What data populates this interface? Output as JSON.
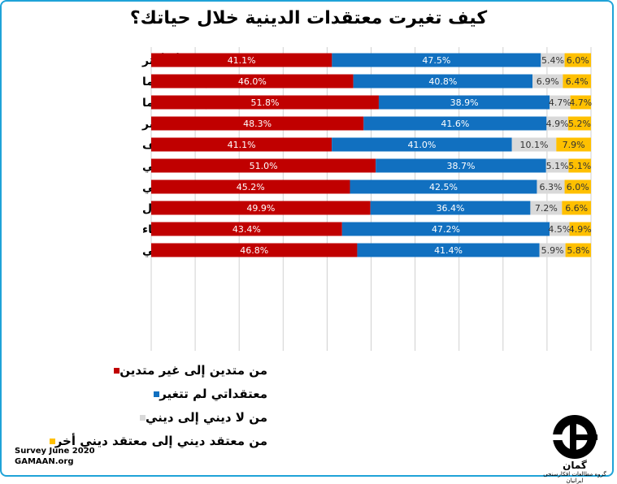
{
  "chart_data": {
    "type": "bar",
    "stacked": true,
    "orientation": "horizontal",
    "title": "كيف تغيرت معتقدات الدينية خلال حياتك؟",
    "categories": [
      "50 عاما أو أكثر",
      "من 30 إلى 49 عاما",
      "من 20 إلى 29 عاما",
      "الحضر",
      "الريف",
      "تعليم جامعي",
      "تعليم غير جامعي",
      "رجال",
      "نساء",
      "المجموع الكلي"
    ],
    "groups": [
      [
        0,
        1,
        2
      ],
      [
        3,
        4
      ],
      [
        5,
        6
      ],
      [
        7,
        8
      ],
      [
        9
      ]
    ],
    "series": [
      {
        "name": "من متدين إلى غير متدين",
        "color": "#c00000",
        "values": [
          41.1,
          46.0,
          51.8,
          48.3,
          41.1,
          51.0,
          45.2,
          49.9,
          43.4,
          46.8
        ]
      },
      {
        "name": "معتقداتي لم تتغير",
        "color": "#1170c0",
        "values": [
          47.5,
          40.8,
          38.9,
          41.6,
          41.0,
          38.7,
          42.5,
          36.4,
          47.2,
          41.4
        ]
      },
      {
        "name": "من لا ديني إلى ديني",
        "color": "#d9d9d9",
        "values": [
          5.4,
          6.9,
          4.7,
          4.9,
          10.1,
          5.1,
          6.3,
          7.2,
          4.5,
          5.9
        ]
      },
      {
        "name": "من معتقد ديني إلى معتقد ديني أخر",
        "color": "#ffc000",
        "values": [
          6.0,
          6.4,
          4.7,
          5.2,
          7.9,
          5.1,
          6.0,
          6.6,
          4.9,
          5.8
        ]
      }
    ],
    "value_suffix": "%",
    "xlim": [
      0,
      100
    ],
    "grid": true,
    "legend_position": "bottom"
  },
  "footer": {
    "source_line1": "Survey June 2020",
    "source_line2": "GAMAAN.org"
  },
  "logo": {
    "name": "GAMAAN",
    "text": "گمان",
    "subtitle": "گروه مطالعات افکارسنجی ایرانیان"
  }
}
